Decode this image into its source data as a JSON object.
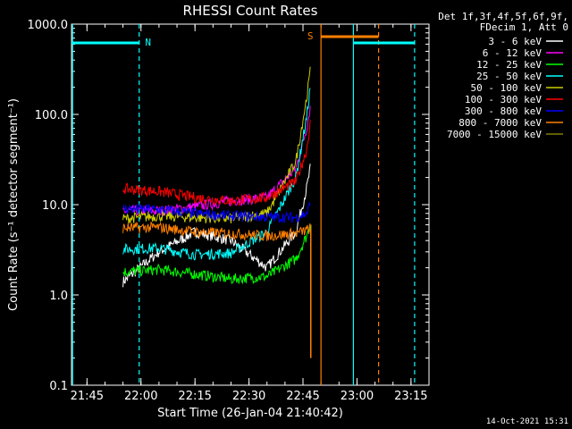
{
  "chart_data": {
    "type": "line",
    "title": "RHESSI Count Rates",
    "xlabel": "Start Time (26-Jan-04 21:40:42)",
    "ylabel": "Count Rate (s⁻¹ detector segment⁻¹)",
    "yscale": "log",
    "ylim": [
      0.1,
      1000
    ],
    "xlim": [
      "21:40:42",
      "23:20:00"
    ],
    "x_ticks": [
      "21:45",
      "22:00",
      "22:15",
      "22:30",
      "22:45",
      "23:00",
      "23:15"
    ],
    "y_ticks": [
      "0.1",
      "1.0",
      "10.0",
      "100.0",
      "1000.0"
    ],
    "legend_header": [
      "Det 1f,3f,4f,5f,6f,9f,",
      "FDecim 1, Att 0"
    ],
    "legend_position": "outside-right",
    "series": [
      {
        "name": "3 - 6 keV",
        "color": "#ffffff",
        "values": {
          "x": [
            "21:55",
            "22:05",
            "22:15",
            "22:25",
            "22:35",
            "22:43",
            "22:46",
            "22:47"
          ],
          "y": [
            1.4,
            3.0,
            5.0,
            4.0,
            2.0,
            5.0,
            15,
            25
          ]
        }
      },
      {
        "name": "6 - 12 keV",
        "color": "#ff00ff",
        "values": {
          "x": [
            "21:55",
            "22:05",
            "22:15",
            "22:25",
            "22:35",
            "22:43",
            "22:46",
            "22:47"
          ],
          "y": [
            8.5,
            8.5,
            9.5,
            11,
            12,
            25,
            70,
            120
          ]
        }
      },
      {
        "name": "12 - 25 keV",
        "color": "#00ff00",
        "values": {
          "x": [
            "21:55",
            "22:05",
            "22:15",
            "22:25",
            "22:35",
            "22:43",
            "22:46",
            "22:47"
          ],
          "y": [
            1.8,
            1.9,
            1.7,
            1.5,
            1.6,
            2.5,
            4.5,
            6
          ]
        }
      },
      {
        "name": "25 - 50 keV",
        "color": "#00ffff",
        "values": {
          "x": [
            "21:55",
            "22:05",
            "22:15",
            "22:25",
            "22:35",
            "22:43",
            "22:46",
            "22:47"
          ],
          "y": [
            3.2,
            3.3,
            2.8,
            2.9,
            5.0,
            20,
            90,
            200
          ]
        }
      },
      {
        "name": "50 - 100 keV",
        "color": "#cccc00",
        "values": {
          "x": [
            "21:55",
            "22:05",
            "22:15",
            "22:25",
            "22:35",
            "22:43",
            "22:46",
            "22:47"
          ],
          "y": [
            7.0,
            7.5,
            7.2,
            7.0,
            8.0,
            30,
            150,
            300
          ]
        }
      },
      {
        "name": "100 - 300 keV",
        "color": "#ff0000",
        "values": {
          "x": [
            "21:55",
            "22:05",
            "22:15",
            "22:25",
            "22:35",
            "22:43",
            "22:46",
            "22:47"
          ],
          "y": [
            15,
            14,
            12,
            11,
            12,
            18,
            40,
            80
          ]
        }
      },
      {
        "name": "300 - 800 keV",
        "color": "#0000ff",
        "values": {
          "x": [
            "21:55",
            "22:05",
            "22:15",
            "22:25",
            "22:35",
            "22:43",
            "22:46",
            "22:47"
          ],
          "y": [
            9.0,
            8.8,
            8.0,
            7.5,
            7.3,
            7.2,
            8.0,
            10
          ]
        }
      },
      {
        "name": "800 - 7000 keV",
        "color": "#ff8000",
        "values": {
          "x": [
            "21:55",
            "22:05",
            "22:15",
            "22:25",
            "22:35",
            "22:43",
            "22:46",
            "22:47"
          ],
          "y": [
            5.5,
            5.6,
            5.0,
            4.8,
            4.5,
            4.8,
            5.2,
            5.5
          ]
        }
      },
      {
        "name": "7000 - 15000 keV",
        "color": "#808000",
        "values": {
          "x": [],
          "y": []
        }
      }
    ],
    "annotations": [
      {
        "text": "N",
        "color": "#00ffff",
        "x_start": "21:40:42",
        "x_end": "21:59:30",
        "kind": "night"
      },
      {
        "text": "",
        "color": "#00ffff",
        "x_start": "22:59",
        "x_end": "23:16",
        "kind": "night"
      },
      {
        "text": "S",
        "color": "#ff8000",
        "x_start": "22:50",
        "x_end": "23:06",
        "kind": "saa"
      }
    ],
    "vlines": [
      {
        "x": "21:41",
        "color": "#00ffff",
        "style": "solid"
      },
      {
        "x": "21:59:30",
        "color": "#00ffff",
        "style": "dashed"
      },
      {
        "x": "22:50",
        "color": "#ff8000",
        "style": "solid"
      },
      {
        "x": "22:59",
        "color": "#00ffff",
        "style": "solid"
      },
      {
        "x": "23:06",
        "color": "#ff8000",
        "style": "dashed"
      },
      {
        "x": "23:16",
        "color": "#00ffff",
        "style": "dashed"
      }
    ],
    "grid": false
  },
  "footer": {
    "timestamp": "14-Oct-2021 15:31"
  }
}
